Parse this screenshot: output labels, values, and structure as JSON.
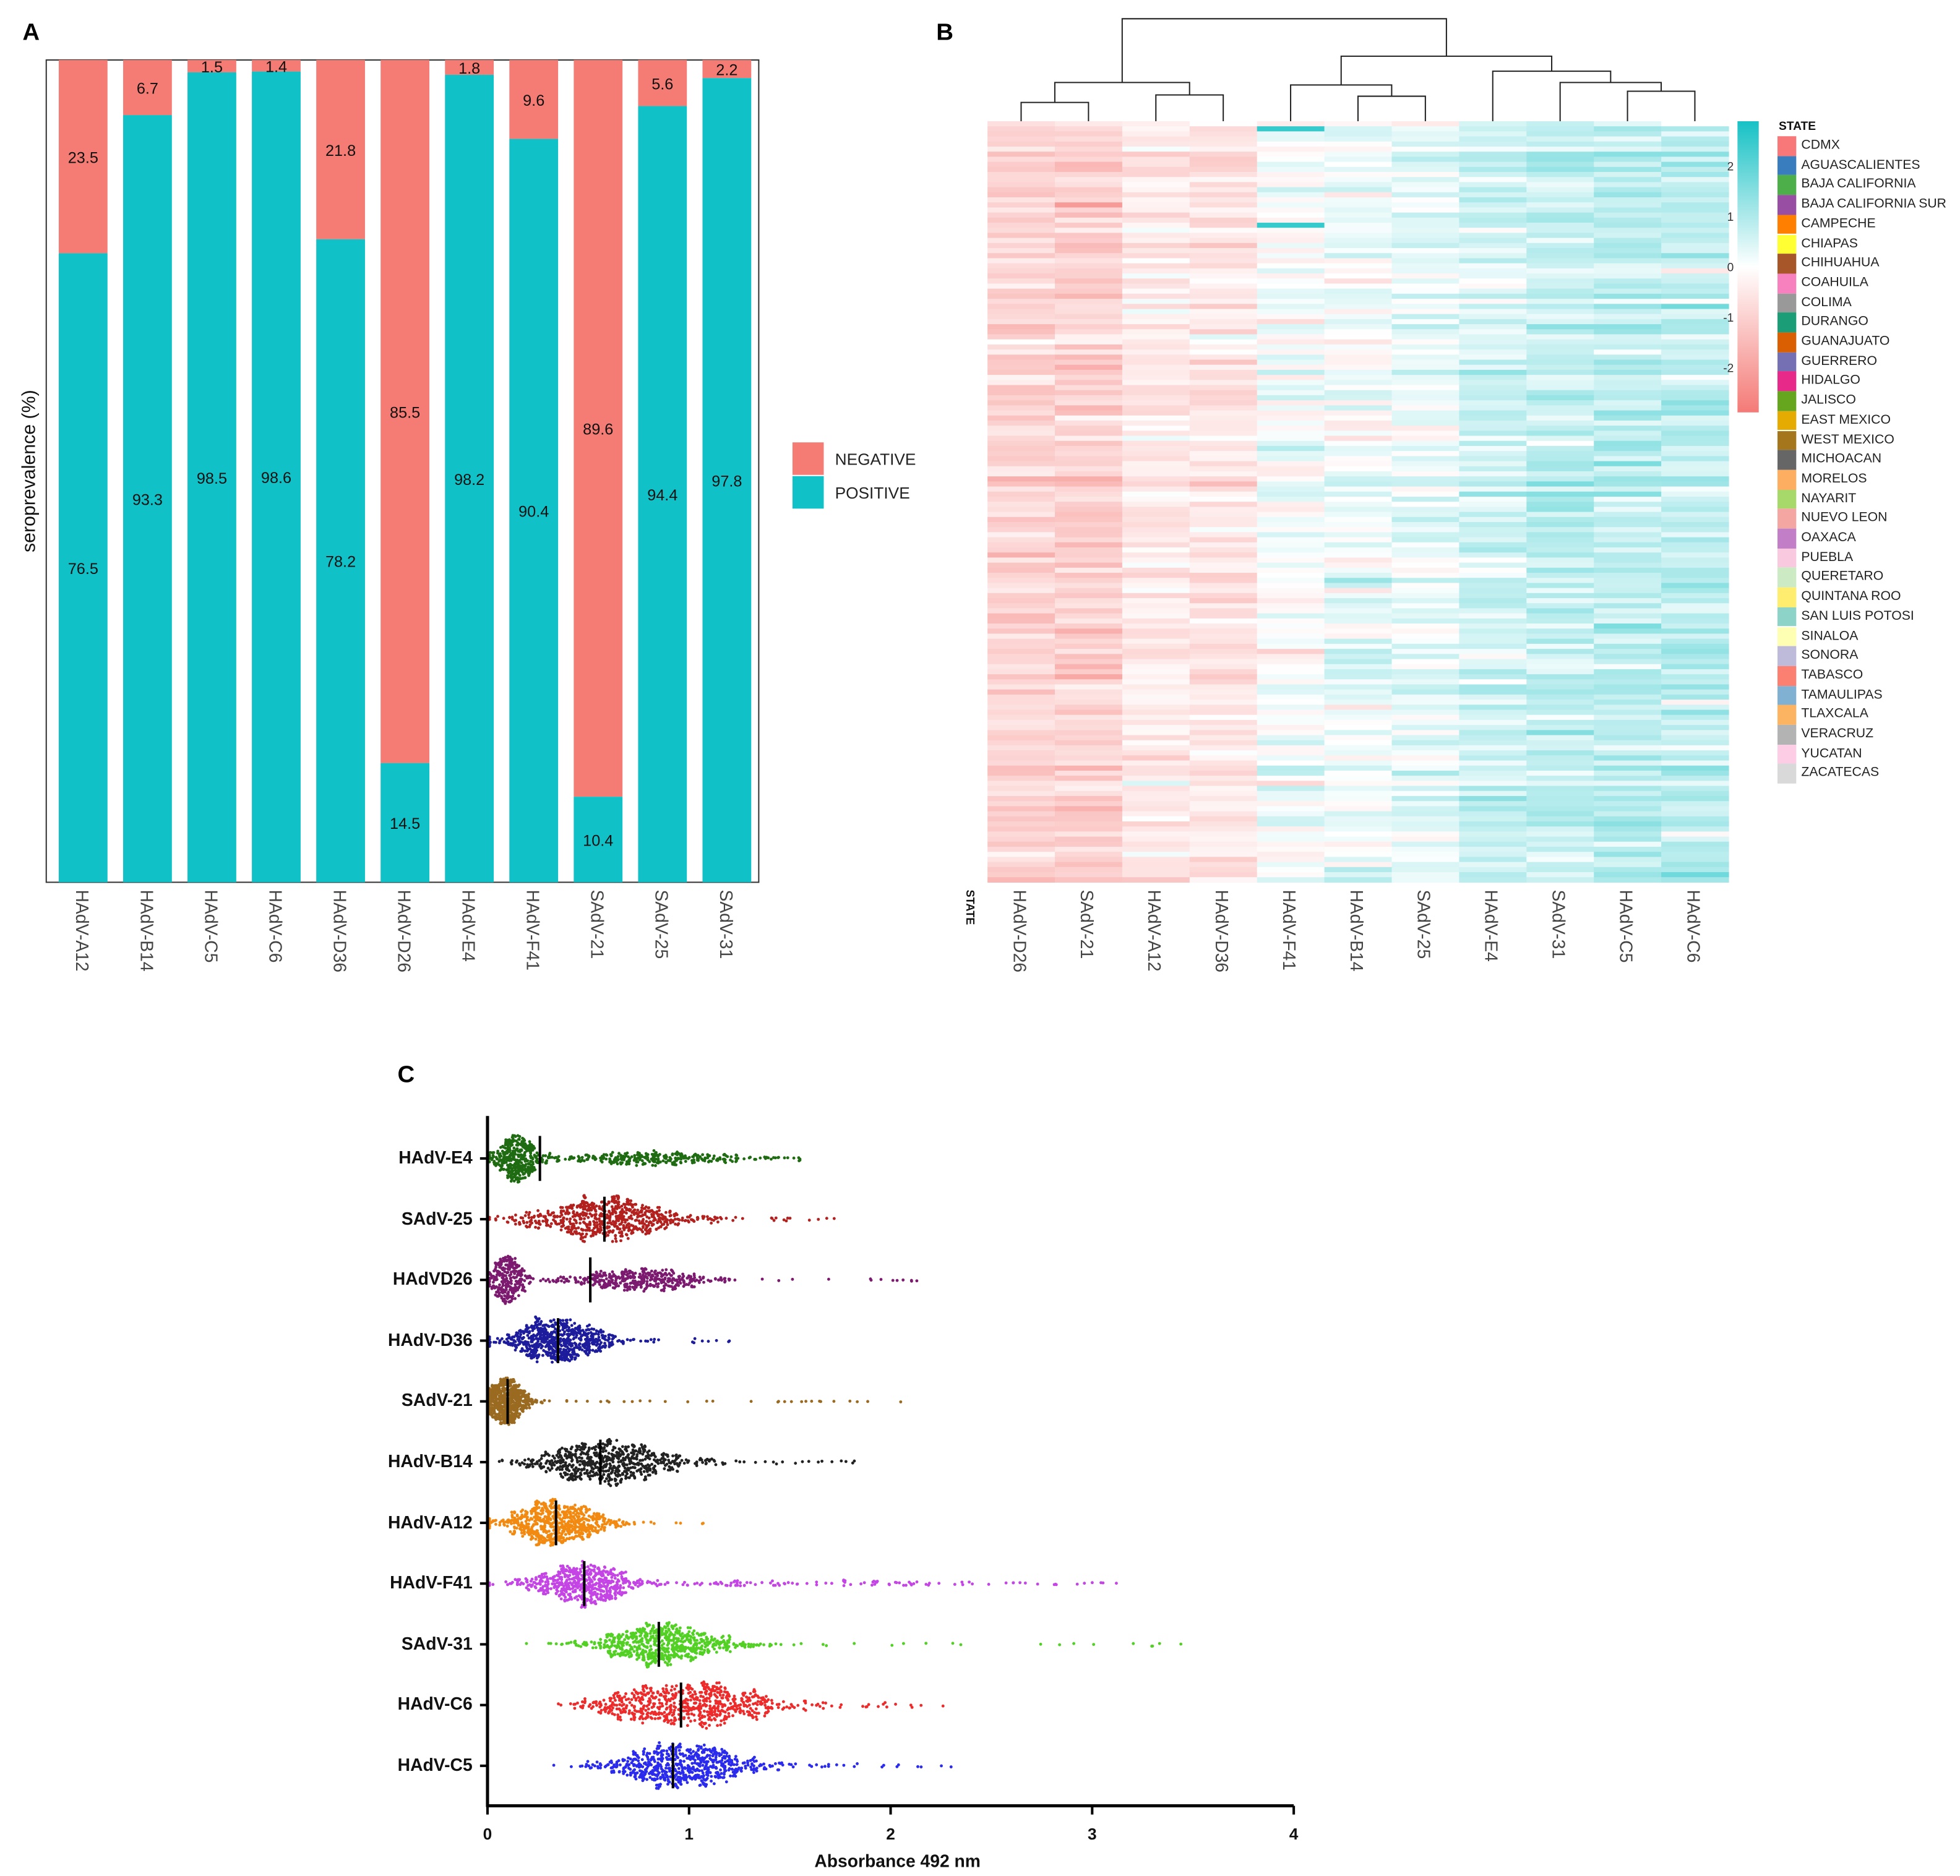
{
  "panels": {
    "a": "A",
    "b": "B",
    "c": "C"
  },
  "chart_data": [
    {
      "type": "bar",
      "stacked": true,
      "title": "",
      "xlabel": "",
      "ylabel": "seroprevalence (%)",
      "ylim": [
        0,
        100
      ],
      "categories": [
        "HAdV-A12",
        "HAdV-B14",
        "HAdV-C5",
        "HAdV-C6",
        "HAdV-D36",
        "HAdV-D26",
        "HAdV-E4",
        "HAdV-F41",
        "SAdV-21",
        "SAdV-25",
        "SAdV-31"
      ],
      "series": [
        {
          "name": "NEGATIVE",
          "color": "#f47c74",
          "values": [
            23.5,
            6.7,
            1.5,
            1.4,
            21.8,
            85.5,
            1.8,
            9.6,
            89.6,
            5.6,
            2.2
          ],
          "labels": [
            "23.5",
            "6.7",
            "1.5",
            "1.4",
            "21.8",
            "85.5",
            "1.8",
            "9.6",
            "89.6",
            "5.6",
            "2.2"
          ]
        },
        {
          "name": "POSITIVE",
          "color": "#10c1c7",
          "values": [
            76.5,
            93.3,
            98.5,
            98.6,
            78.2,
            14.5,
            98.2,
            90.4,
            10.4,
            94.4,
            97.8
          ],
          "labels": [
            "76.5",
            "93.3",
            "98.5",
            "98.6",
            "78.2",
            "14.5",
            "98.2",
            "90.4",
            "10.4",
            "94.4",
            "97.8"
          ]
        }
      ],
      "legend": {
        "position": "right",
        "items": [
          "NEGATIVE",
          "POSITIVE"
        ]
      }
    },
    {
      "type": "heatmap",
      "columns": [
        "HAdV-D26",
        "SAdV-21",
        "HAdV-A12",
        "HAdV-D36",
        "HAdV-F41",
        "HAdV-B14",
        "SAdV-25",
        "HAdV-E4",
        "SAdV-31",
        "HAdV-C5",
        "HAdV-C6"
      ],
      "column_mean_z": [
        -0.9,
        -1.0,
        -0.45,
        -0.5,
        0.05,
        0.15,
        0.2,
        0.55,
        0.75,
        0.8,
        0.8
      ],
      "annotation_label": "STATE",
      "color_scale": {
        "min": -2.9,
        "max": 2.9,
        "ticks": [
          "2",
          "1",
          "0",
          "-1",
          "-2"
        ],
        "tick_values": [
          2,
          1,
          0,
          -1,
          -2
        ],
        "low": "#f47a76",
        "mid": "#ffffff",
        "high": "#17c1c5"
      },
      "legend_title": "STATE",
      "states": [
        {
          "name": "CDMX",
          "color": "#f8787a"
        },
        {
          "name": "AGUASCALIENTES",
          "color": "#3a7dbf"
        },
        {
          "name": "BAJA CALIFORNIA",
          "color": "#4caf4a"
        },
        {
          "name": "BAJA CALIFORNIA SUR",
          "color": "#984ea3"
        },
        {
          "name": "CAMPECHE",
          "color": "#ff7f00"
        },
        {
          "name": "CHIAPAS",
          "color": "#ffff33"
        },
        {
          "name": "CHIHUAHUA",
          "color": "#a65628"
        },
        {
          "name": "COAHUILA",
          "color": "#f781bf"
        },
        {
          "name": "COLIMA",
          "color": "#999999"
        },
        {
          "name": "DURANGO",
          "color": "#1b9e77"
        },
        {
          "name": "GUANAJUATO",
          "color": "#d95f02"
        },
        {
          "name": "GUERRERO",
          "color": "#7570b3"
        },
        {
          "name": "HIDALGO",
          "color": "#e7298a"
        },
        {
          "name": "JALISCO",
          "color": "#66a61e"
        },
        {
          "name": "EAST MEXICO",
          "color": "#e6ab02"
        },
        {
          "name": "WEST MEXICO",
          "color": "#a6761d"
        },
        {
          "name": "MICHOACAN",
          "color": "#666666"
        },
        {
          "name": "MORELOS",
          "color": "#fdae61"
        },
        {
          "name": "NAYARIT",
          "color": "#a6d96a"
        },
        {
          "name": "NUEVO LEON",
          "color": "#f4a6a2"
        },
        {
          "name": "OAXACA",
          "color": "#c27fc7"
        },
        {
          "name": "PUEBLA",
          "color": "#f9c9e0"
        },
        {
          "name": "QUERETARO",
          "color": "#ccebc5"
        },
        {
          "name": "QUINTANA ROO",
          "color": "#ffed6f"
        },
        {
          "name": "SAN LUIS POTOSI",
          "color": "#8dd3c7"
        },
        {
          "name": "SINALOA",
          "color": "#ffffb3"
        },
        {
          "name": "SONORA",
          "color": "#bebada"
        },
        {
          "name": "TABASCO",
          "color": "#fb8072"
        },
        {
          "name": "TAMAULIPAS",
          "color": "#80b1d3"
        },
        {
          "name": "TLAXCALA",
          "color": "#fdb462"
        },
        {
          "name": "VERACRUZ",
          "color": "#b3b3b3"
        },
        {
          "name": "YUCATAN",
          "color": "#fccde5"
        },
        {
          "name": "ZACATECAS",
          "color": "#d9d9d9"
        }
      ]
    },
    {
      "type": "scatter",
      "subtype": "beeswarm",
      "xlabel": "Absorbance 492 nm",
      "xlim": [
        0,
        4
      ],
      "xticks": [
        "0",
        "1",
        "2",
        "3",
        "4"
      ],
      "xtick_values": [
        0,
        1,
        2,
        3,
        4
      ],
      "series": [
        {
          "name": "HAdV-E4",
          "color": "#1f6b12",
          "median": 0.26,
          "modes": [
            [
              0.15,
              0.06,
              0.6
            ],
            [
              0.8,
              0.28,
              0.4
            ]
          ],
          "max": 1.55
        },
        {
          "name": "SAdV-25",
          "color": "#b3211f",
          "median": 0.58,
          "modes": [
            [
              0.6,
              0.22,
              1
            ]
          ],
          "max": 1.72
        },
        {
          "name": "HAdVD26",
          "color": "#7b1a6f",
          "median": 0.51,
          "modes": [
            [
              0.1,
              0.05,
              0.4
            ],
            [
              0.74,
              0.2,
              0.6
            ]
          ],
          "max": 2.13
        },
        {
          "name": "HAdV-D36",
          "color": "#1c1c9c",
          "median": 0.35,
          "modes": [
            [
              0.34,
              0.14,
              1
            ]
          ],
          "max": 1.2
        },
        {
          "name": "SAdV-21",
          "color": "#9a6a20",
          "median": 0.1,
          "modes": [
            [
              0.1,
              0.06,
              1
            ]
          ],
          "max": 2.05
        },
        {
          "name": "HAdV-B14",
          "color": "#222222",
          "median": 0.56,
          "modes": [
            [
              0.6,
              0.2,
              1
            ]
          ],
          "max": 1.82
        },
        {
          "name": "HAdV-A12",
          "color": "#f28a12",
          "median": 0.34,
          "modes": [
            [
              0.33,
              0.14,
              1
            ]
          ],
          "max": 1.07
        },
        {
          "name": "HAdV-F41",
          "color": "#c444e6",
          "median": 0.48,
          "modes": [
            [
              0.47,
              0.14,
              0.85
            ],
            [
              1.4,
              0.7,
              0.15
            ]
          ],
          "max": 3.12
        },
        {
          "name": "SAdV-31",
          "color": "#52d024",
          "median": 0.85,
          "modes": [
            [
              0.87,
              0.2,
              1
            ]
          ],
          "max": 3.44
        },
        {
          "name": "HAdV-C6",
          "color": "#ee2b2b",
          "median": 0.96,
          "modes": [
            [
              0.75,
              0.15,
              0.4
            ],
            [
              1.1,
              0.18,
              0.6
            ]
          ],
          "max": 2.26
        },
        {
          "name": "HAdV-C5",
          "color": "#2b2bee",
          "median": 0.92,
          "modes": [
            [
              0.95,
              0.2,
              1
            ]
          ],
          "max": 2.3
        }
      ]
    }
  ]
}
